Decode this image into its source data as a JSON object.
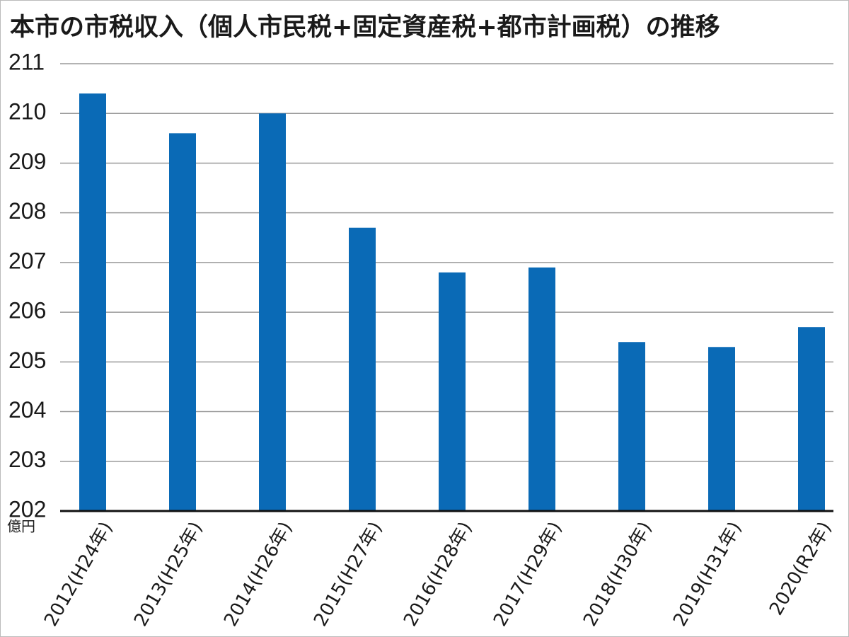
{
  "chart_data": {
    "type": "bar",
    "title": "本市の市税収入（個人市民税+固定資産税+都市計画税）の推移",
    "y_unit": "億円",
    "categories": [
      "2012(H24年)",
      "2013(H25年)",
      "2014(H26年)",
      "2015(H27年)",
      "2016(H28年)",
      "2017(H29年)",
      "2018(H30年)",
      "2019(H31年)",
      "2020(R2年)"
    ],
    "values": [
      210.4,
      209.6,
      210.0,
      207.7,
      206.8,
      206.9,
      205.4,
      205.3,
      205.7
    ],
    "color": "#0a6ab6",
    "ylim": [
      202,
      211
    ],
    "yticks": [
      202,
      203,
      204,
      205,
      206,
      207,
      208,
      209,
      210,
      211
    ],
    "grid": true
  }
}
